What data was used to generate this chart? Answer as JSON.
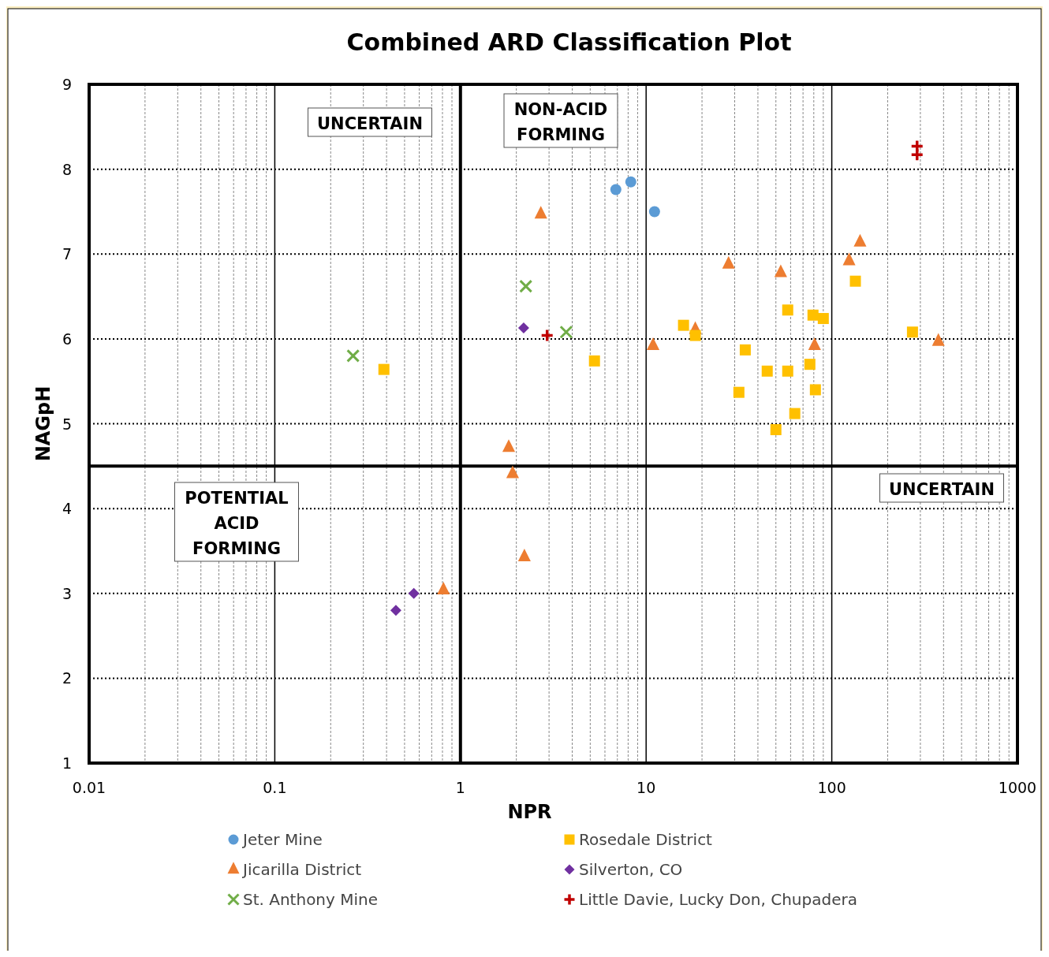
{
  "chart_data": {
    "type": "scatter",
    "title": "Combined ARD Classification Plot",
    "xlabel": "NPR",
    "ylabel": "NAGpH",
    "log": "x",
    "xlim": [
      0.01,
      1000
    ],
    "xticks": [
      0.01,
      0.1,
      1,
      10,
      100,
      1000
    ],
    "ylim": [
      1,
      9
    ],
    "yticks": [
      1,
      2,
      3,
      4,
      5,
      6,
      7,
      8,
      9
    ],
    "grid": true,
    "legend": "bottom",
    "ref_lines": [
      {
        "axis": "y",
        "value": 4.5,
        "color": "#000000"
      },
      {
        "axis": "x",
        "value": 1,
        "color": "#000000"
      }
    ],
    "annotations": [
      "UNCERTAIN",
      "NON-ACID FORMING",
      "POTENTIAL ACID FORMING",
      "UNCERTAIN"
    ],
    "series": [
      {
        "name": "Jeter Mine",
        "color": "#5b9bd5",
        "marker": "circle",
        "x": [
          6.87,
          8.27,
          11.1
        ],
        "values": [
          7.76,
          7.85,
          7.5
        ]
      },
      {
        "name": "Jicarilla District",
        "color": "#ed7d31",
        "marker": "triangle",
        "x": [
          2.71,
          27.8,
          53.1,
          124,
          142,
          10.9,
          18.4,
          80.8,
          375,
          1.82,
          1.91,
          2.21,
          0.81
        ],
        "values": [
          7.47,
          6.88,
          6.78,
          6.92,
          7.14,
          5.92,
          6.11,
          5.92,
          5.97,
          4.72,
          4.41,
          3.43,
          3.04
        ]
      },
      {
        "name": "St. Anthony Mine",
        "color": "#70ad47",
        "marker": "cross",
        "x": [
          0.264,
          2.25,
          3.71
        ],
        "values": [
          5.8,
          6.62,
          6.08
        ]
      },
      {
        "name": "Rosedale District",
        "color": "#ffc000",
        "marker": "square",
        "x": [
          0.387,
          5.27,
          15.9,
          18.4,
          34.2,
          57.9,
          79.2,
          90,
          134,
          44.9,
          57.9,
          76.2,
          31.6,
          81.6,
          63.2,
          50,
          272
        ],
        "values": [
          5.64,
          5.74,
          6.16,
          6.04,
          5.87,
          6.34,
          6.28,
          6.24,
          6.68,
          5.62,
          5.62,
          5.7,
          5.37,
          5.4,
          5.12,
          4.93,
          6.08
        ]
      },
      {
        "name": "Silverton, CO",
        "color": "#7030a0",
        "marker": "diamond",
        "x": [
          2.19,
          0.561,
          0.449
        ],
        "values": [
          6.13,
          3.0,
          2.8
        ]
      },
      {
        "name": "Little Davie, Lucky Don, Chupadera",
        "color": "#c00000",
        "marker": "plus",
        "x": [
          2.93,
          288,
          288
        ],
        "values": [
          6.04,
          8.27,
          8.17
        ]
      }
    ]
  }
}
